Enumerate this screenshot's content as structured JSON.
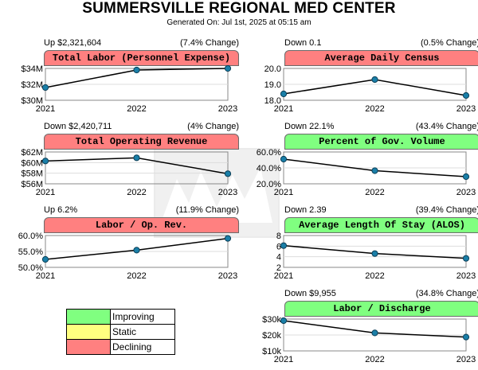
{
  "header": {
    "title": "SUMMERSVILLE REGIONAL MED CENTER",
    "subtitle": "Generated On: Jul 1st, 2025 at 05:15 am"
  },
  "colors": {
    "improving": "#80ff80",
    "static": "#ffff80",
    "declining": "#ff8080",
    "line": "#000000",
    "marker": "#1a7fa8"
  },
  "legend": [
    {
      "label": "Improving",
      "color": "#80ff80"
    },
    {
      "label": "Static",
      "color": "#ffff80"
    },
    {
      "label": "Declining",
      "color": "#ff8080"
    }
  ],
  "chart_data": [
    {
      "type": "line",
      "title": "Total Labor (Personnel Expense)",
      "change": "Up $2,321,604",
      "pct": "(7.4% Change)",
      "status": "declining",
      "categories": [
        "2021",
        "2022",
        "2023"
      ],
      "values": [
        31600000,
        33800000,
        34000000
      ],
      "ylim": [
        30000000,
        34000000
      ],
      "yticks": [
        "$34M",
        "$32M",
        "$30M"
      ]
    },
    {
      "type": "line",
      "title": "Average Daily Census",
      "change": "Down 0.1",
      "pct": "(0.5% Change)",
      "status": "declining",
      "categories": [
        "2021",
        "2022",
        "2023"
      ],
      "values": [
        18.4,
        19.3,
        18.3
      ],
      "ylim": [
        18.0,
        20.0
      ],
      "yticks": [
        "20.0",
        "19.0",
        "18.0"
      ]
    },
    {
      "type": "line",
      "title": "Total Operating Revenue",
      "change": "Down $2,420,711",
      "pct": "(4% Change)",
      "status": "declining",
      "categories": [
        "2021",
        "2022",
        "2023"
      ],
      "values": [
        60300000,
        60900000,
        57900000
      ],
      "ylim": [
        56000000,
        62000000
      ],
      "yticks": [
        "$62M",
        "$60M",
        "$58M",
        "$56M"
      ]
    },
    {
      "type": "line",
      "title": "Percent of Gov. Volume",
      "change": "Down 22.1%",
      "pct": "(43.4% Change)",
      "status": "improving",
      "categories": [
        "2021",
        "2022",
        "2023"
      ],
      "values": [
        51,
        36.5,
        29
      ],
      "ylim": [
        20,
        60
      ],
      "yticks": [
        "60.0%",
        "40.0%",
        "20.0%"
      ]
    },
    {
      "type": "line",
      "title": "Labor / Op. Rev.",
      "change": "Up 6.2%",
      "pct": "(11.9% Change)",
      "status": "declining",
      "categories": [
        "2021",
        "2022",
        "2023"
      ],
      "values": [
        52.5,
        55.4,
        59.1
      ],
      "ylim": [
        50,
        60
      ],
      "yticks": [
        "60.0%",
        "55.0%",
        "50.0%"
      ]
    },
    {
      "type": "line",
      "title": "Average Length Of Stay (ALOS)",
      "change": "Down 2.39",
      "pct": "(39.4% Change)",
      "status": "improving",
      "categories": [
        "2021",
        "2022",
        "2023"
      ],
      "values": [
        6.1,
        4.6,
        3.7
      ],
      "ylim": [
        2,
        8
      ],
      "yticks": [
        "8",
        "6",
        "4",
        "2"
      ]
    },
    {
      "type": "line",
      "title": "Labor / Discharge",
      "change": "Down $9,955",
      "pct": "(34.8% Change)",
      "status": "improving",
      "categories": [
        "2021",
        "2022",
        "2023"
      ],
      "values": [
        29000,
        21300,
        18700
      ],
      "ylim": [
        10000,
        30000
      ],
      "yticks": [
        "$30k",
        "$20k",
        "$10k"
      ]
    }
  ]
}
